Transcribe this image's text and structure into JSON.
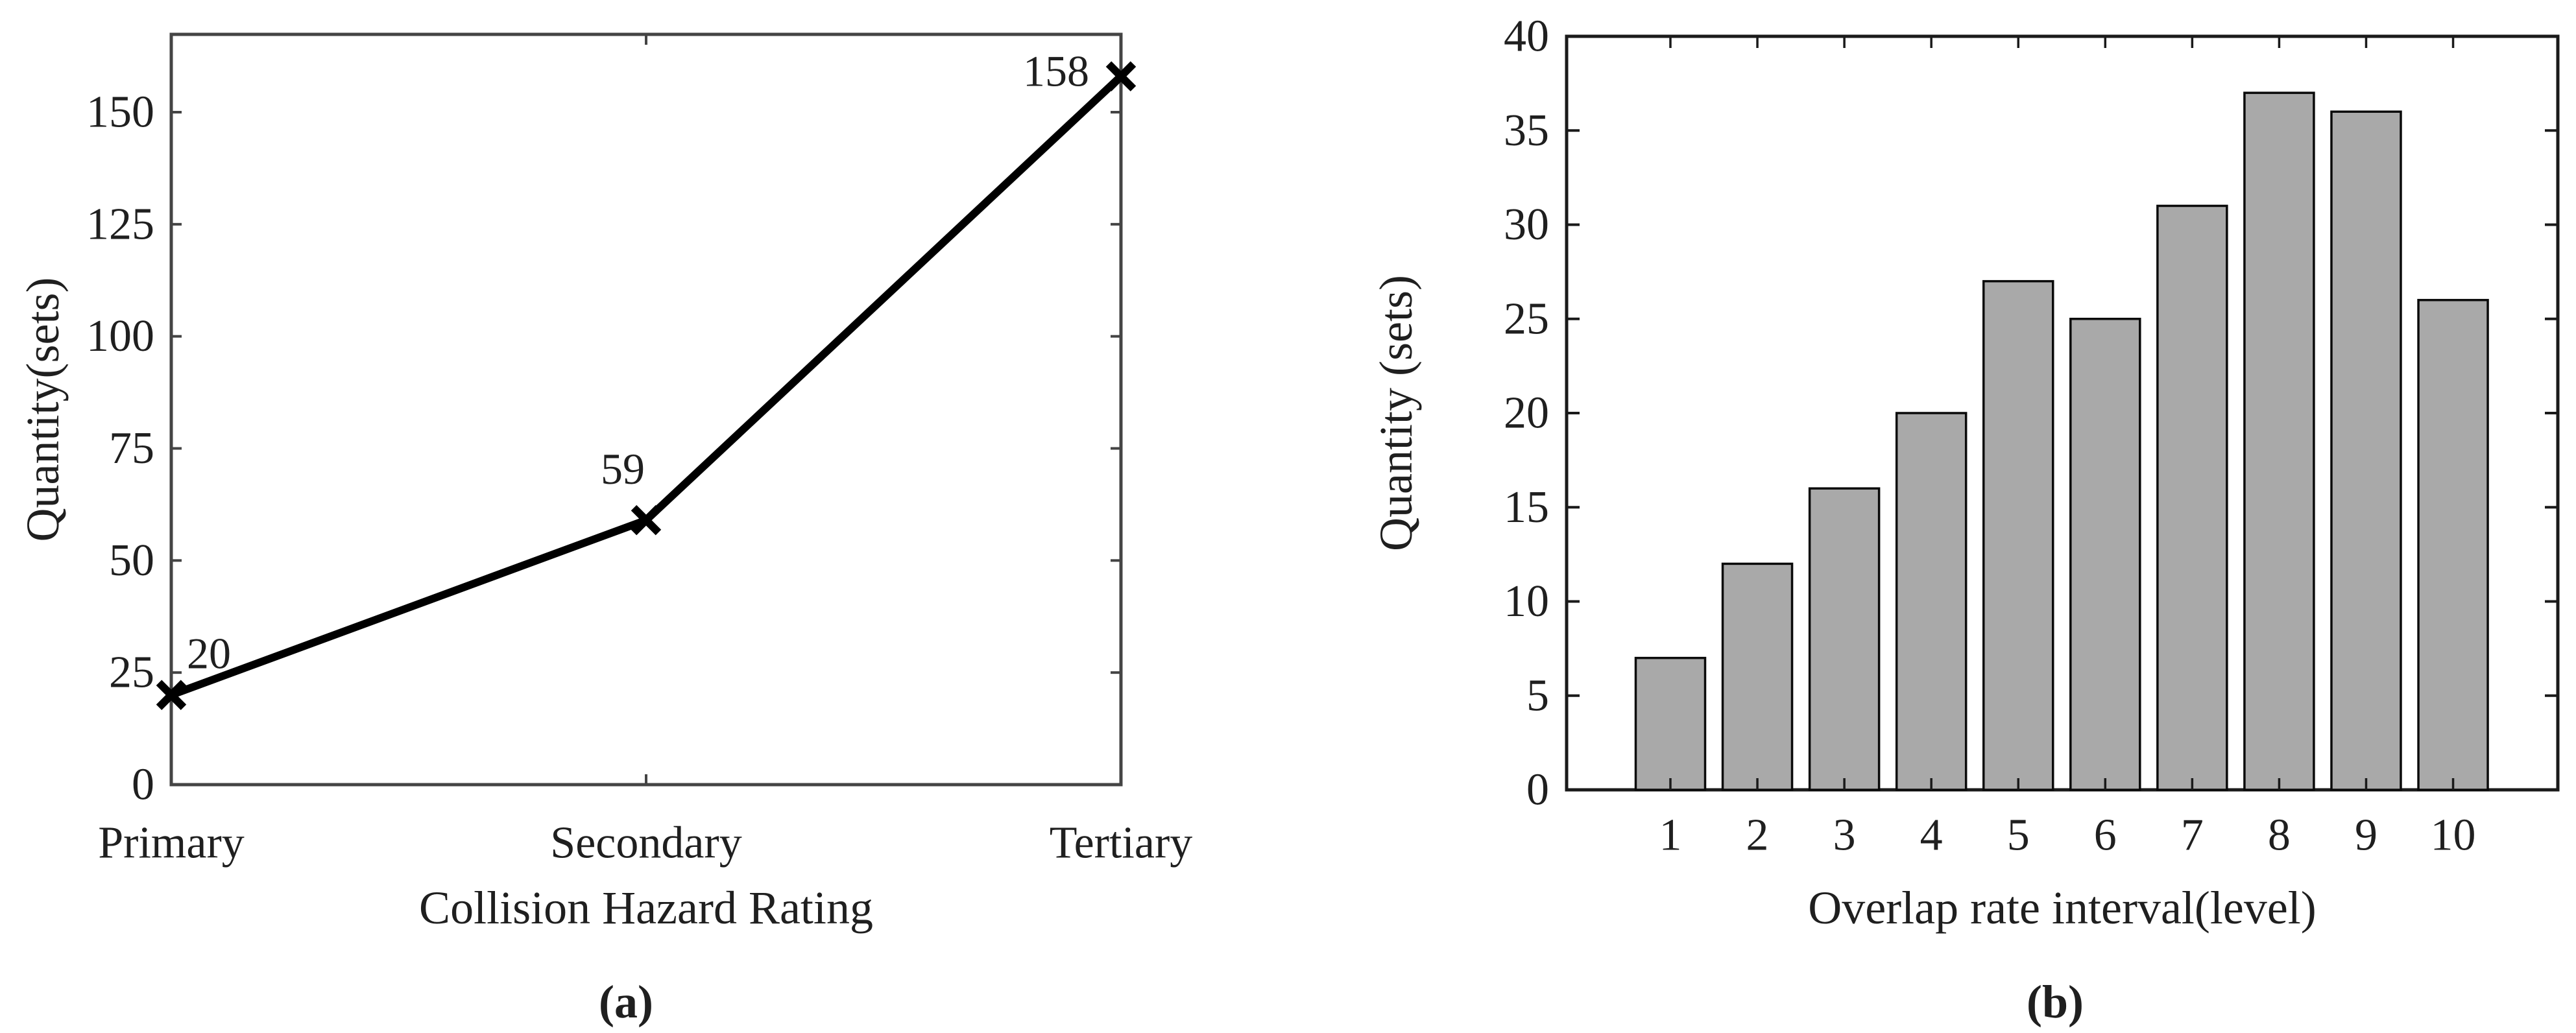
{
  "figure": {
    "background": "#ffffff",
    "text_color": "#1f1f1f"
  },
  "chart_data": [
    {
      "id": "a",
      "type": "line",
      "categories": [
        "Primary",
        "Secondary",
        "Tertiary"
      ],
      "values": [
        20,
        59,
        158
      ],
      "point_labels": [
        "20",
        "59",
        "158"
      ],
      "xlabel": "Collision Hazard Rating",
      "ylabel": "Quantity(sets)",
      "yticks": [
        0,
        25,
        50,
        75,
        100,
        125,
        150
      ],
      "ylim": [
        0,
        167.4
      ],
      "marker": "x",
      "line_color": "#000000",
      "marker_color": "#000000",
      "axis_color": "#444444",
      "grid": false,
      "legend": null,
      "caption": "(a)"
    },
    {
      "id": "b",
      "type": "bar",
      "categories": [
        "1",
        "2",
        "3",
        "4",
        "5",
        "6",
        "7",
        "8",
        "9",
        "10"
      ],
      "values": [
        7,
        12,
        16,
        20,
        27,
        25,
        31,
        37,
        36,
        26
      ],
      "xlabel": "Overlap rate interval(level)",
      "ylabel": "Quantity (sets)",
      "yticks": [
        0,
        5,
        10,
        15,
        20,
        25,
        30,
        35,
        40
      ],
      "ylim": [
        0,
        40
      ],
      "bar_color": "#a9a9a9",
      "bar_edge_color": "#0a0a0a",
      "axis_color": "#1a1a1a",
      "grid": false,
      "legend": null,
      "caption": "(b)"
    }
  ]
}
